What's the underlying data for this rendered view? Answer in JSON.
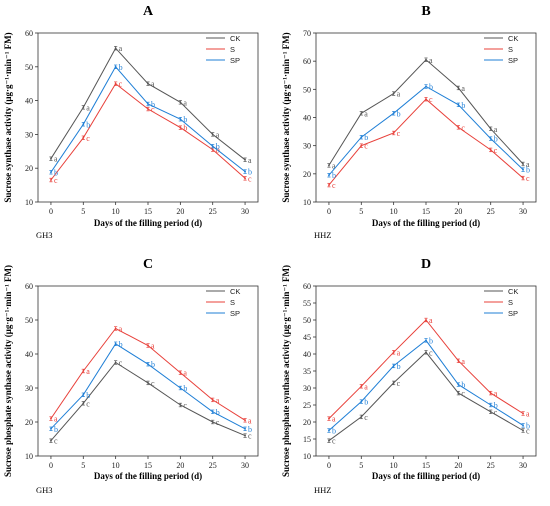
{
  "chart_data": [
    {
      "type": "line",
      "panel": "A",
      "cultivar": "GH3",
      "xlabel": "Days of the filling period (d)",
      "ylabel": "Sucrose synthase activity (μg·g⁻¹·min⁻¹ FM)",
      "ylim": [
        10,
        60
      ],
      "yticks": [
        10,
        20,
        30,
        40,
        50,
        60
      ],
      "x": [
        0,
        5,
        10,
        15,
        20,
        25,
        30
      ],
      "legend_position": "top-right",
      "series": [
        {
          "name": "CK",
          "color": "#555555",
          "values": [
            22.8,
            38,
            55.5,
            45,
            39.5,
            30,
            22.5
          ],
          "labels": [
            "a",
            "a",
            "a",
            "a",
            "a",
            "a",
            "a"
          ]
        },
        {
          "name": "S",
          "color": "#e8403a",
          "values": [
            16.5,
            29,
            45,
            37.5,
            32,
            25.5,
            17
          ],
          "labels": [
            "c",
            "c",
            "c",
            "c",
            "b",
            "b",
            "c"
          ]
        },
        {
          "name": "SP",
          "color": "#1f7fd6",
          "values": [
            18.8,
            33,
            50,
            39,
            34.5,
            26.5,
            19
          ],
          "labels": [
            "b",
            "b",
            "b",
            "b",
            "b",
            "b",
            "b"
          ]
        }
      ]
    },
    {
      "type": "line",
      "panel": "B",
      "cultivar": "HHZ",
      "xlabel": "Days of the filling period (d)",
      "ylabel": "Sucrose synthase activity (μg·g⁻¹·min⁻¹ FM)",
      "ylim": [
        10,
        70
      ],
      "yticks": [
        10,
        20,
        30,
        40,
        50,
        60,
        70
      ],
      "x": [
        0,
        5,
        10,
        15,
        20,
        25,
        30
      ],
      "legend_position": "top-right",
      "series": [
        {
          "name": "CK",
          "color": "#555555",
          "values": [
            23,
            41.5,
            48.5,
            60.5,
            50.5,
            36,
            23.5
          ],
          "labels": [
            "a",
            "a",
            "a",
            "a",
            "a",
            "a",
            "a"
          ]
        },
        {
          "name": "S",
          "color": "#e8403a",
          "values": [
            16,
            30,
            34.5,
            46.5,
            36.5,
            28.5,
            18.5
          ],
          "labels": [
            "c",
            "c",
            "c",
            "c",
            "c",
            "c",
            "c"
          ]
        },
        {
          "name": "SP",
          "color": "#1f7fd6",
          "values": [
            19.5,
            33,
            41.5,
            51,
            44.5,
            32.5,
            21.5
          ],
          "labels": [
            "b",
            "b",
            "b",
            "b",
            "b",
            "b",
            "b"
          ]
        }
      ]
    },
    {
      "type": "line",
      "panel": "C",
      "cultivar": "GH3",
      "xlabel": "Days of the filling period (d)",
      "ylabel": "Sucrose phosphate synthase activity (μg·g⁻¹·min⁻¹ FM)",
      "ylim": [
        10,
        60
      ],
      "yticks": [
        10,
        20,
        30,
        40,
        50,
        60
      ],
      "x": [
        0,
        5,
        10,
        15,
        20,
        25,
        30
      ],
      "legend_position": "top-right",
      "series": [
        {
          "name": "CK",
          "color": "#555555",
          "values": [
            14.5,
            25.5,
            37.5,
            31.5,
            25,
            20,
            16
          ],
          "labels": [
            "c",
            "c",
            "c",
            "c",
            "c",
            "c",
            "c"
          ]
        },
        {
          "name": "S",
          "color": "#e8403a",
          "values": [
            21,
            35,
            47.5,
            42.5,
            34.5,
            26.5,
            20.5
          ],
          "labels": [
            "a",
            "a",
            "a",
            "a",
            "a",
            "a",
            "a"
          ]
        },
        {
          "name": "SP",
          "color": "#1f7fd6",
          "values": [
            18,
            28,
            43,
            37,
            30,
            23,
            18
          ],
          "labels": [
            "b",
            "b",
            "b",
            "b",
            "b",
            "b",
            "b"
          ]
        }
      ]
    },
    {
      "type": "line",
      "panel": "D",
      "cultivar": "HHZ",
      "xlabel": "Days of the filling period (d)",
      "ylabel": "Sucrose phosphate synthase activity (μg·g⁻¹·min⁻¹ FM)",
      "ylim": [
        10,
        60
      ],
      "yticks": [
        10,
        15,
        20,
        25,
        30,
        35,
        40,
        45,
        50,
        55,
        60
      ],
      "x": [
        0,
        5,
        10,
        15,
        20,
        25,
        30
      ],
      "legend_position": "top-right",
      "series": [
        {
          "name": "CK",
          "color": "#555555",
          "values": [
            14.5,
            21.5,
            31.5,
            40.5,
            28.5,
            23,
            17.5
          ],
          "labels": [
            "c",
            "c",
            "c",
            "c",
            "c",
            "c",
            "c"
          ]
        },
        {
          "name": "S",
          "color": "#e8403a",
          "values": [
            21,
            30.5,
            40.5,
            50,
            38,
            28.5,
            22.5
          ],
          "labels": [
            "a",
            "a",
            "a",
            "a",
            "a",
            "a",
            "a"
          ]
        },
        {
          "name": "SP",
          "color": "#1f7fd6",
          "values": [
            17.5,
            26,
            36.5,
            44,
            31,
            25,
            19
          ],
          "labels": [
            "b",
            "b",
            "b",
            "b",
            "b",
            "b",
            "b"
          ]
        }
      ]
    }
  ]
}
